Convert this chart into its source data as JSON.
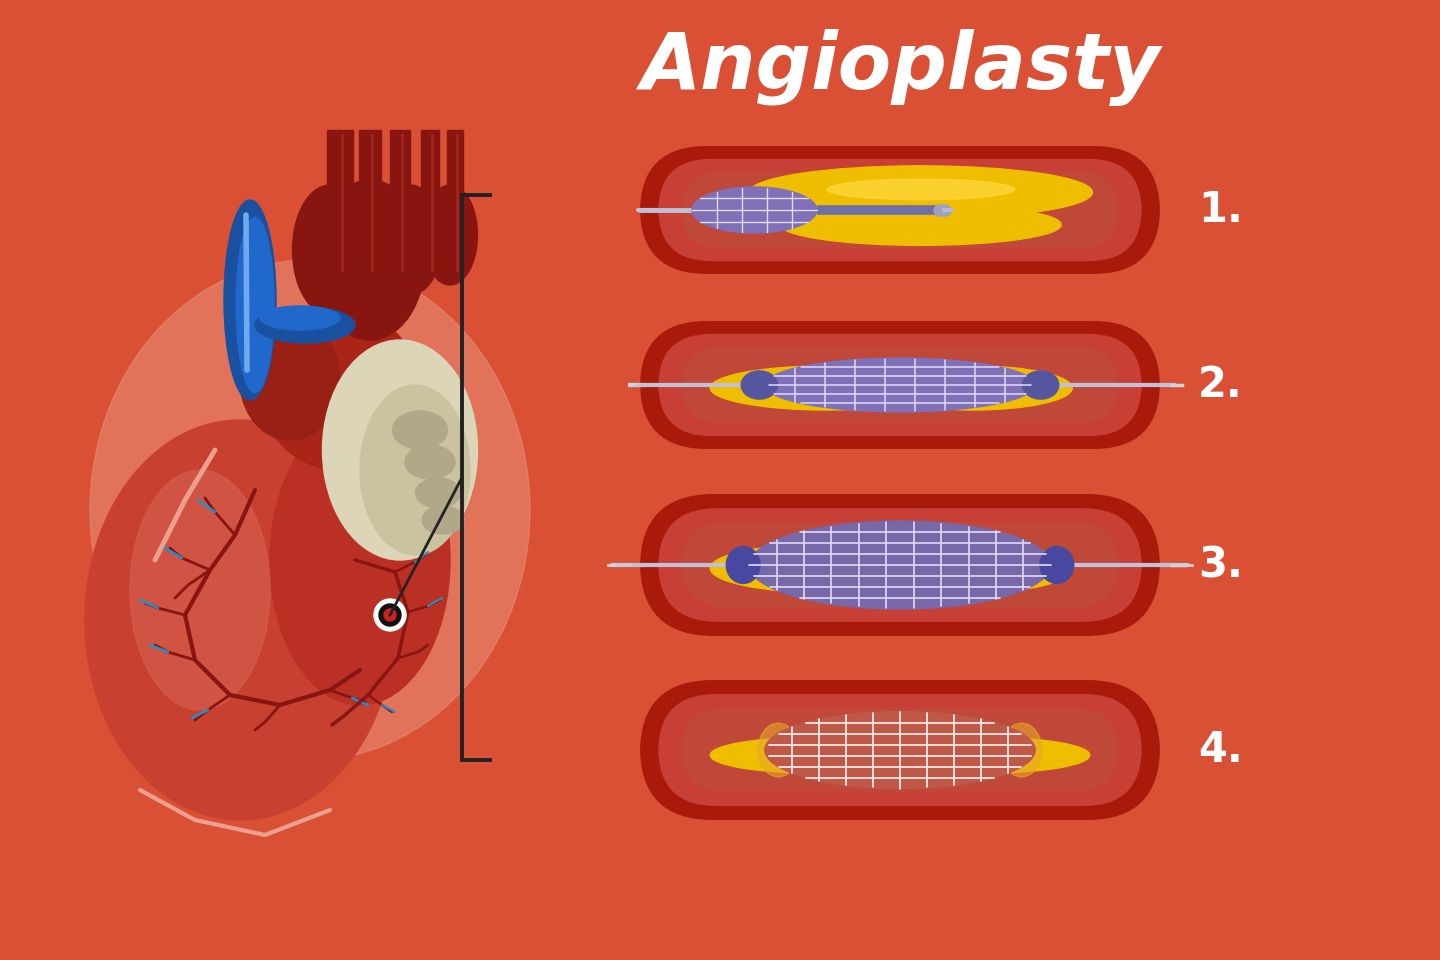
{
  "title": "Angioplasty",
  "title_color": "#FFFFFF",
  "title_fontsize": 56,
  "background_color": "#D95035",
  "heart_circle_color": "#E87A60",
  "labels": [
    "1.",
    "2.",
    "3.",
    "4."
  ],
  "label_color": "#FFFFFF",
  "label_fontsize": 30,
  "vessel_outer_color": "#AA1A0A",
  "vessel_mid_color": "#CC3020",
  "vessel_inner_color": "#C85040",
  "vessel_lumen_color": "#C85545",
  "plaque_color": "#F5C000",
  "plaque_highlight": "#FFE060",
  "catheter_color": "#7878B8",
  "catheter_dark": "#5050A0",
  "wire_color": "#C8C8DC",
  "stent_purple": "#8878C0",
  "stent_wire": "#E8E8F8",
  "stent4_fill": "#C06858",
  "stent4_wire": "#F0E8E8",
  "connector_color": "#5858A0"
}
